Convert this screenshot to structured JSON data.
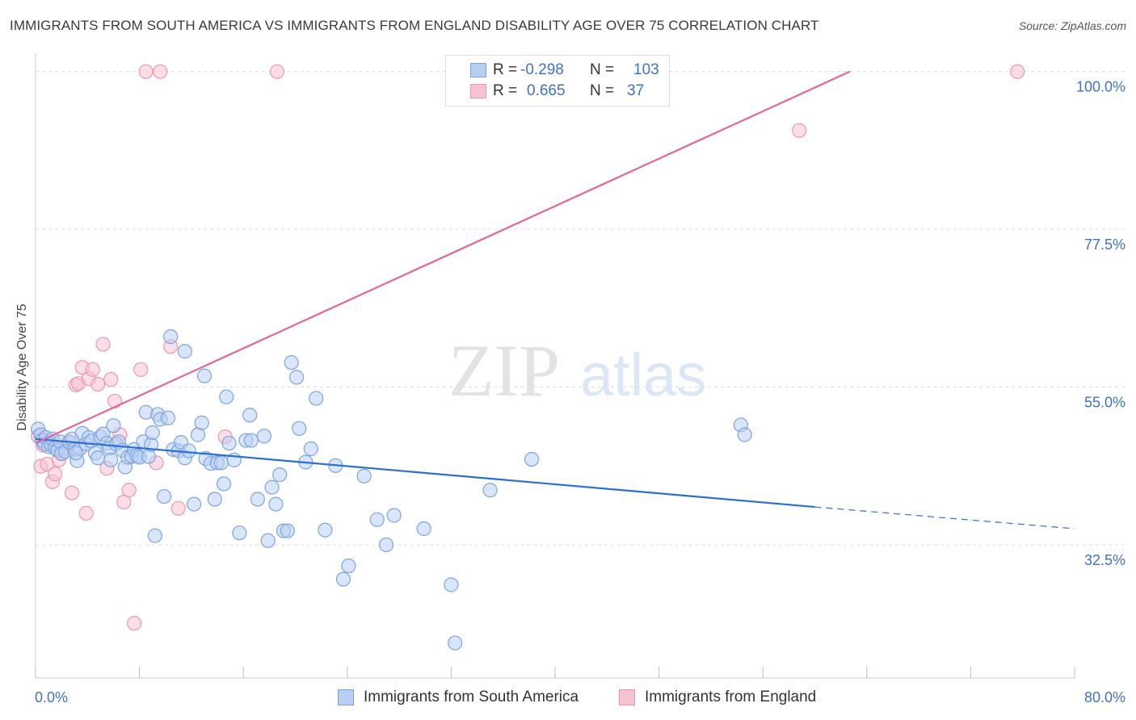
{
  "title": "IMMIGRANTS FROM SOUTH AMERICA VS IMMIGRANTS FROM ENGLAND DISABILITY AGE OVER 75 CORRELATION CHART",
  "source": "Source: ZipAtlas.com",
  "watermark": {
    "zip": "ZIP",
    "atlas": "atlas"
  },
  "legend_top": {
    "rows": [
      {
        "r_label": "R =",
        "r_value": "-0.298",
        "n_label": "N =",
        "n_value": "103",
        "color": "#9bbcee"
      },
      {
        "r_label": "R =",
        "r_value": "0.665",
        "n_label": "N =",
        "n_value": "37",
        "color": "#f4a7bd"
      }
    ]
  },
  "legend_bottom": [
    {
      "label": "Immigrants from South America",
      "color": "#9bbcee"
    },
    {
      "label": "Immigrants from England",
      "color": "#f4a7bd"
    }
  ],
  "colors": {
    "blue_fill": "#b9cff2",
    "blue_stroke": "#7da3e0",
    "blue_line": "#2b6fd1",
    "pink_fill": "#f7c3d1",
    "pink_stroke": "#ec97b0",
    "pink_line": "#e0679a",
    "tick_label": "#3d72c6",
    "grid": "#dedede"
  },
  "chart_data": {
    "type": "scatter",
    "title": "IMMIGRANTS FROM SOUTH AMERICA VS IMMIGRANTS FROM ENGLAND DISABILITY AGE OVER 75 CORRELATION CHART",
    "xlabel": "",
    "ylabel": "Disability Age Over 75",
    "xlim": [
      0,
      80
    ],
    "ylim": [
      13.5,
      101
    ],
    "x_tick_labels": [
      "0.0%",
      "80.0%"
    ],
    "y_ticks": [
      32.5,
      55.0,
      77.5,
      100.0
    ],
    "y_tick_labels": [
      "32.5%",
      "55.0%",
      "77.5%",
      "100.0%"
    ],
    "grid": true,
    "legend_placement": "top-center",
    "series": [
      {
        "name": "Immigrants from South America",
        "r": -0.298,
        "n": 103,
        "trend": {
          "x": [
            0,
            60
          ],
          "y": [
            47.6,
            37.9
          ],
          "dashed_to": [
            80,
            34.8
          ]
        },
        "points": [
          [
            0.2,
            49.0
          ],
          [
            0.4,
            48.2
          ],
          [
            0.5,
            47.4
          ],
          [
            0.7,
            46.9
          ],
          [
            0.8,
            47.8
          ],
          [
            1.0,
            46.5
          ],
          [
            1.2,
            46.8
          ],
          [
            1.3,
            47.6
          ],
          [
            1.5,
            46.3
          ],
          [
            1.7,
            46.0
          ],
          [
            1.9,
            47.2
          ],
          [
            2.0,
            45.5
          ],
          [
            2.3,
            45.8
          ],
          [
            2.6,
            47.2
          ],
          [
            2.8,
            47.6
          ],
          [
            3.0,
            46.1
          ],
          [
            3.2,
            44.5
          ],
          [
            3.4,
            46.2
          ],
          [
            3.6,
            48.4
          ],
          [
            3.9,
            46.9
          ],
          [
            4.1,
            47.8
          ],
          [
            4.3,
            47.3
          ],
          [
            4.6,
            45.6
          ],
          [
            4.8,
            44.9
          ],
          [
            5.0,
            47.9
          ],
          [
            5.2,
            48.3
          ],
          [
            5.5,
            47.0
          ],
          [
            5.7,
            46.3
          ],
          [
            6.0,
            49.5
          ],
          [
            6.2,
            46.9
          ],
          [
            6.4,
            47.2
          ],
          [
            6.7,
            46.0
          ],
          [
            6.9,
            43.6
          ],
          [
            7.1,
            45.0
          ],
          [
            7.4,
            45.1
          ],
          [
            7.6,
            46.1
          ],
          [
            7.8,
            45.2
          ],
          [
            8.0,
            45.0
          ],
          [
            8.3,
            47.2
          ],
          [
            8.5,
            51.4
          ],
          [
            8.7,
            45.1
          ],
          [
            8.9,
            46.8
          ],
          [
            9.2,
            33.8
          ],
          [
            9.4,
            51.1
          ],
          [
            9.6,
            50.4
          ],
          [
            9.9,
            39.4
          ],
          [
            10.2,
            50.6
          ],
          [
            10.4,
            62.2
          ],
          [
            10.6,
            46.1
          ],
          [
            11.0,
            45.9
          ],
          [
            11.2,
            47.1
          ],
          [
            11.5,
            44.9
          ],
          [
            11.8,
            45.9
          ],
          [
            12.2,
            38.3
          ],
          [
            12.5,
            48.2
          ],
          [
            12.8,
            49.9
          ],
          [
            13.1,
            44.8
          ],
          [
            13.5,
            44.1
          ],
          [
            13.8,
            39.0
          ],
          [
            14.0,
            44.2
          ],
          [
            14.3,
            44.2
          ],
          [
            14.5,
            41.2
          ],
          [
            14.9,
            47.0
          ],
          [
            15.3,
            44.6
          ],
          [
            15.7,
            34.2
          ],
          [
            16.2,
            47.4
          ],
          [
            16.6,
            47.4
          ],
          [
            17.1,
            39.0
          ],
          [
            17.6,
            48.0
          ],
          [
            17.9,
            33.1
          ],
          [
            18.2,
            40.7
          ],
          [
            18.5,
            38.3
          ],
          [
            18.8,
            42.5
          ],
          [
            19.1,
            34.5
          ],
          [
            19.4,
            34.5
          ],
          [
            19.7,
            58.5
          ],
          [
            20.1,
            56.4
          ],
          [
            20.8,
            44.3
          ],
          [
            21.6,
            53.4
          ],
          [
            21.2,
            46.2
          ],
          [
            22.3,
            34.6
          ],
          [
            23.1,
            43.8
          ],
          [
            23.7,
            27.6
          ],
          [
            24.1,
            29.5
          ],
          [
            25.3,
            42.3
          ],
          [
            26.3,
            36.1
          ],
          [
            27.0,
            32.5
          ],
          [
            27.6,
            36.7
          ],
          [
            29.9,
            34.8
          ],
          [
            32.0,
            26.8
          ],
          [
            32.3,
            18.5
          ],
          [
            35.0,
            40.3
          ],
          [
            38.2,
            44.7
          ],
          [
            54.3,
            49.6
          ],
          [
            54.6,
            48.2
          ],
          [
            3.1,
            45.6
          ],
          [
            5.8,
            44.6
          ],
          [
            9.0,
            48.5
          ],
          [
            11.5,
            60.1
          ],
          [
            13.0,
            56.6
          ],
          [
            16.5,
            51.0
          ],
          [
            20.3,
            49.1
          ],
          [
            14.7,
            53.6
          ]
        ]
      },
      {
        "name": "Immigrants from England",
        "r": 0.665,
        "n": 37,
        "trend": {
          "x": [
            0,
            62.7
          ],
          "y": [
            47.0,
            100.0
          ]
        },
        "points": [
          [
            0.2,
            48.0
          ],
          [
            0.4,
            43.7
          ],
          [
            0.6,
            46.7
          ],
          [
            0.9,
            44.0
          ],
          [
            1.1,
            47.3
          ],
          [
            1.3,
            41.5
          ],
          [
            1.5,
            42.6
          ],
          [
            1.8,
            44.6
          ],
          [
            2.0,
            45.6
          ],
          [
            2.3,
            46.3
          ],
          [
            2.6,
            47.0
          ],
          [
            2.8,
            39.9
          ],
          [
            3.1,
            55.3
          ],
          [
            3.3,
            55.5
          ],
          [
            3.6,
            57.8
          ],
          [
            3.9,
            37.0
          ],
          [
            4.1,
            56.2
          ],
          [
            4.4,
            57.5
          ],
          [
            4.8,
            55.4
          ],
          [
            5.2,
            61.1
          ],
          [
            5.5,
            43.4
          ],
          [
            5.8,
            56.1
          ],
          [
            6.1,
            53.0
          ],
          [
            6.5,
            48.2
          ],
          [
            6.8,
            38.6
          ],
          [
            7.2,
            40.3
          ],
          [
            7.6,
            21.3
          ],
          [
            8.1,
            57.5
          ],
          [
            8.5,
            100.0
          ],
          [
            9.3,
            44.2
          ],
          [
            9.6,
            100.0
          ],
          [
            10.4,
            60.8
          ],
          [
            11.0,
            37.7
          ],
          [
            14.6,
            47.9
          ],
          [
            18.6,
            100.0
          ],
          [
            58.8,
            91.6
          ],
          [
            75.6,
            100.0
          ]
        ]
      }
    ]
  }
}
